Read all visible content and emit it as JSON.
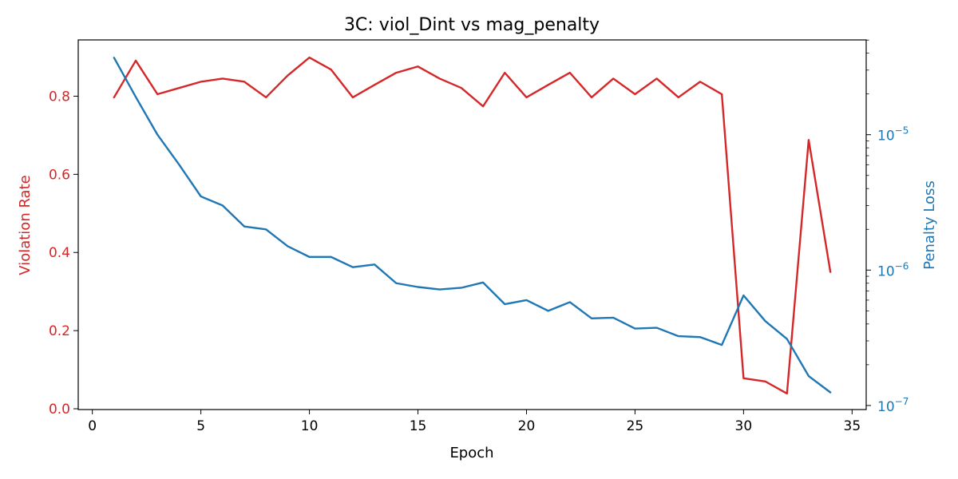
{
  "chart_data": {
    "type": "line",
    "title": "3C: viol_Dint vs mag_penalty",
    "xlabel": "Epoch",
    "ylabel_left": "Violation Rate",
    "ylabel_right": "Penalty Loss",
    "xlim": [
      -0.65,
      35.65
    ],
    "ylim_left": [
      -0.002,
      0.944
    ],
    "ylim_right_log10": [
      -7.03,
      -4.3
    ],
    "y_right_scale": "log",
    "grid": false,
    "x_ticks": [
      0,
      5,
      10,
      15,
      20,
      25,
      30,
      35
    ],
    "y_left_ticks": [
      0.0,
      0.2,
      0.4,
      0.6,
      0.8
    ],
    "y_right_ticks": [
      {
        "exp": -7,
        "label": "10",
        "sup": "−7"
      },
      {
        "exp": -6,
        "label": "10",
        "sup": "−6"
      },
      {
        "exp": -5,
        "label": "10",
        "sup": "−5"
      }
    ],
    "x": [
      1,
      2,
      3,
      4,
      5,
      6,
      7,
      8,
      9,
      10,
      11,
      12,
      13,
      14,
      15,
      16,
      17,
      18,
      19,
      20,
      21,
      22,
      23,
      24,
      25,
      26,
      27,
      28,
      29,
      30,
      31,
      32,
      33,
      34
    ],
    "series": [
      {
        "name": "Violation Rate",
        "axis": "left",
        "color": "#d62728",
        "values": [
          0.797,
          0.891,
          0.805,
          0.821,
          0.837,
          0.845,
          0.837,
          0.797,
          0.853,
          0.899,
          0.868,
          0.797,
          0.829,
          0.86,
          0.876,
          0.845,
          0.821,
          0.774,
          0.86,
          0.797,
          0.829,
          0.86,
          0.797,
          0.845,
          0.805,
          0.845,
          0.797,
          0.837,
          0.805,
          0.078,
          0.07,
          0.039,
          0.688,
          0.35
        ]
      },
      {
        "name": "Penalty Loss",
        "axis": "right",
        "color": "#1f77b4",
        "values": [
          3.7e-05,
          1.9e-05,
          1e-05,
          6e-06,
          3.5e-06,
          3e-06,
          2.1e-06,
          2e-06,
          1.5e-06,
          1.25e-06,
          1.25e-06,
          1.05e-06,
          1.1e-06,
          8e-07,
          7.5e-07,
          7.2e-07,
          7.4e-07,
          8.1e-07,
          5.6e-07,
          6e-07,
          5e-07,
          5.8e-07,
          4.4e-07,
          4.45e-07,
          3.7e-07,
          3.75e-07,
          3.25e-07,
          3.2e-07,
          2.8e-07,
          6.5e-07,
          4.2e-07,
          3.1e-07,
          1.65e-07,
          1.25e-07
        ]
      }
    ],
    "colors": {
      "left_axis": "#d62728",
      "right_axis": "#1f77b4",
      "frame": "#000000"
    }
  }
}
